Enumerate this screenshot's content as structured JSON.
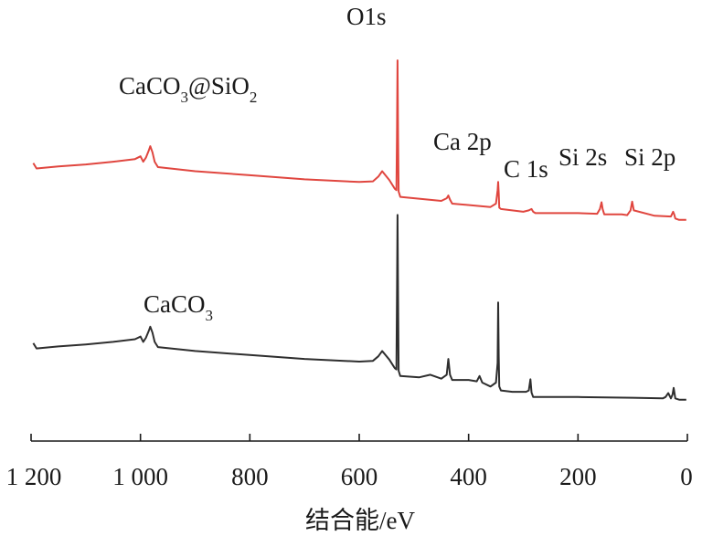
{
  "chart_data": {
    "type": "line",
    "xlabel": "结合能/eV",
    "xlim": [
      1200,
      0
    ],
    "x_reversed": true,
    "xticks": [
      {
        "value": 1200,
        "label": "1 200"
      },
      {
        "value": 1000,
        "label": "1 000"
      },
      {
        "value": 800,
        "label": "800"
      },
      {
        "value": 600,
        "label": "600"
      },
      {
        "value": 400,
        "label": "400"
      },
      {
        "value": 200,
        "label": "200"
      },
      {
        "value": 0,
        "label": "0"
      }
    ],
    "y_axis": "none",
    "grid": false,
    "series": [
      {
        "name": "CaCO3@SiO2",
        "label_main": "CaCO",
        "label_sub1": "3",
        "label_mid": "@SiO",
        "label_sub2": "2",
        "color": "#e0463f",
        "x": [
          1196,
          1190,
          1150,
          1100,
          1050,
          1010,
          1000,
          995,
          990,
          985,
          982,
          978,
          974,
          968,
          900,
          800,
          700,
          600,
          575,
          565,
          558,
          545,
          535,
          532,
          531,
          530,
          529,
          528,
          525,
          450,
          440,
          437,
          434,
          430,
          360,
          350,
          347,
          346,
          345,
          344,
          341,
          300,
          290,
          285,
          282,
          278,
          200,
          165,
          160,
          157,
          155,
          152,
          120,
          110,
          104,
          101,
          98,
          60,
          30,
          26,
          24,
          22,
          15,
          2
        ],
        "y": [
          0.1,
          0.02,
          0.05,
          0.08,
          0.12,
          0.16,
          0.2,
          0.12,
          0.18,
          0.28,
          0.35,
          0.26,
          0.12,
          0.04,
          -0.02,
          -0.08,
          -0.14,
          -0.18,
          -0.17,
          -0.1,
          -0.02,
          -0.15,
          -0.28,
          -0.3,
          0.5,
          1.62,
          0.5,
          -0.32,
          -0.4,
          -0.46,
          -0.42,
          -0.38,
          -0.44,
          -0.5,
          -0.55,
          -0.5,
          -0.3,
          -0.18,
          -0.34,
          -0.56,
          -0.58,
          -0.62,
          -0.6,
          -0.58,
          -0.62,
          -0.64,
          -0.64,
          -0.65,
          -0.58,
          -0.48,
          -0.58,
          -0.66,
          -0.66,
          -0.67,
          -0.6,
          -0.47,
          -0.6,
          -0.68,
          -0.69,
          -0.62,
          -0.66,
          -0.72,
          -0.74,
          -0.74
        ]
      },
      {
        "name": "CaCO3",
        "label_main": "CaCO",
        "label_sub1": "3",
        "color": "#2e2e2e",
        "x": [
          1196,
          1190,
          1150,
          1100,
          1050,
          1010,
          1000,
          995,
          990,
          985,
          982,
          978,
          974,
          968,
          900,
          800,
          700,
          600,
          575,
          565,
          558,
          545,
          535,
          532,
          531,
          530,
          529,
          528,
          525,
          490,
          470,
          450,
          440,
          437,
          434,
          430,
          400,
          385,
          380,
          375,
          360,
          350,
          347,
          346,
          345,
          344,
          341,
          320,
          295,
          290,
          287,
          285,
          282,
          278,
          200,
          100,
          45,
          40,
          35,
          30,
          27,
          25,
          22,
          15,
          2
        ],
        "y": [
          0.1,
          0.02,
          0.05,
          0.08,
          0.12,
          0.16,
          0.2,
          0.12,
          0.18,
          0.28,
          0.35,
          0.26,
          0.12,
          0.04,
          -0.02,
          -0.08,
          -0.14,
          -0.18,
          -0.17,
          -0.1,
          -0.02,
          -0.15,
          -0.28,
          -0.3,
          0.8,
          2.05,
          0.8,
          -0.32,
          -0.4,
          -0.42,
          -0.38,
          -0.44,
          -0.38,
          -0.14,
          -0.38,
          -0.46,
          -0.46,
          -0.48,
          -0.4,
          -0.5,
          -0.56,
          -0.5,
          -0.2,
          0.72,
          -0.1,
          -0.56,
          -0.62,
          -0.64,
          -0.64,
          -0.62,
          -0.45,
          -0.65,
          -0.72,
          -0.72,
          -0.72,
          -0.73,
          -0.74,
          -0.72,
          -0.66,
          -0.74,
          -0.68,
          -0.58,
          -0.74,
          -0.76,
          -0.76
        ]
      }
    ],
    "annotations": [
      {
        "text": "O1s"
      },
      {
        "text": "Ca 2p"
      },
      {
        "text": "C 1s"
      },
      {
        "text": "Si 2s"
      },
      {
        "text": "Si 2p"
      }
    ]
  }
}
